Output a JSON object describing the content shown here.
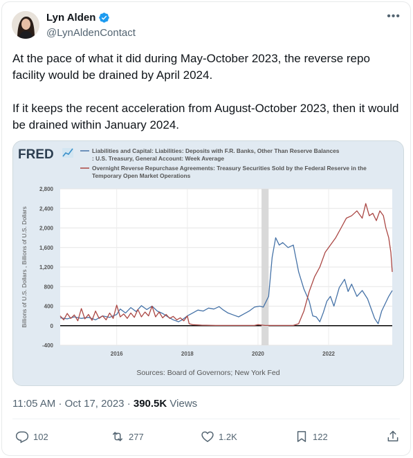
{
  "author": {
    "name": "Lyn Alden",
    "handle": "@LynAldenContact"
  },
  "tweet": {
    "paragraph_1": "At the pace of what it did during May-October 2023, the reverse repo facility would be drained by April 2024.",
    "paragraph_2": "If it keeps the recent acceleration from August-October 2023, then it would be drained within January 2024."
  },
  "meta": {
    "time": "11:05 AM",
    "date": "Oct 17, 2023",
    "separator": "·",
    "views_count": "390.5K",
    "views_label": "Views"
  },
  "actions": {
    "replies": "102",
    "reposts": "277",
    "likes": "1.2K",
    "bookmarks": "122"
  },
  "colors": {
    "accent": "#1d9bf0",
    "series_blue": "#4572a7",
    "series_red": "#aa4643"
  },
  "chart_data": {
    "type": "line",
    "brand": "FRED",
    "source": "Sources: Board of Governors; New York Fed",
    "ylabel": "Billions of U.S. Dollars , Billions of U.S. Dollars",
    "ylim": [
      -400,
      2800
    ],
    "yticks": [
      "2,800",
      "2,400",
      "2,000",
      "1,600",
      "1,200",
      "800",
      "400",
      "0",
      "-400"
    ],
    "xlim": [
      2014.4,
      2023.8
    ],
    "xticks": [
      "2016",
      "2018",
      "2020",
      "2022"
    ],
    "recession": [
      2020.1,
      2020.3
    ],
    "series": [
      {
        "name": "Liabilities and Capital: Liabilities: Deposits with F.R. Banks, Other Than Reserve Balances: U.S. Treasury, General Account: Week Average",
        "color": "#4572a7",
        "points": [
          [
            2014.4,
            160
          ],
          [
            2014.6,
            140
          ],
          [
            2014.8,
            180
          ],
          [
            2015.0,
            150
          ],
          [
            2015.2,
            170
          ],
          [
            2015.4,
            120
          ],
          [
            2015.6,
            200
          ],
          [
            2015.8,
            170
          ],
          [
            2016.0,
            230
          ],
          [
            2016.1,
            340
          ],
          [
            2016.25,
            260
          ],
          [
            2016.4,
            370
          ],
          [
            2016.55,
            290
          ],
          [
            2016.7,
            410
          ],
          [
            2016.85,
            330
          ],
          [
            2017.0,
            400
          ],
          [
            2017.15,
            300
          ],
          [
            2017.3,
            250
          ],
          [
            2017.45,
            180
          ],
          [
            2017.6,
            120
          ],
          [
            2017.75,
            80
          ],
          [
            2017.85,
            120
          ],
          [
            2018.0,
            200
          ],
          [
            2018.15,
            260
          ],
          [
            2018.3,
            320
          ],
          [
            2018.45,
            300
          ],
          [
            2018.6,
            360
          ],
          [
            2018.75,
            340
          ],
          [
            2018.9,
            390
          ],
          [
            2019.0,
            330
          ],
          [
            2019.15,
            260
          ],
          [
            2019.3,
            220
          ],
          [
            2019.45,
            180
          ],
          [
            2019.6,
            240
          ],
          [
            2019.75,
            300
          ],
          [
            2019.9,
            380
          ],
          [
            2020.05,
            400
          ],
          [
            2020.15,
            380
          ],
          [
            2020.3,
            600
          ],
          [
            2020.4,
            1400
          ],
          [
            2020.5,
            1800
          ],
          [
            2020.6,
            1650
          ],
          [
            2020.7,
            1700
          ],
          [
            2020.85,
            1600
          ],
          [
            2021.0,
            1650
          ],
          [
            2021.15,
            1100
          ],
          [
            2021.3,
            750
          ],
          [
            2021.45,
            500
          ],
          [
            2021.55,
            200
          ],
          [
            2021.65,
            180
          ],
          [
            2021.75,
            80
          ],
          [
            2021.85,
            270
          ],
          [
            2021.95,
            500
          ],
          [
            2022.05,
            600
          ],
          [
            2022.15,
            400
          ],
          [
            2022.3,
            780
          ],
          [
            2022.45,
            950
          ],
          [
            2022.55,
            700
          ],
          [
            2022.65,
            850
          ],
          [
            2022.8,
            600
          ],
          [
            2022.95,
            720
          ],
          [
            2023.1,
            550
          ],
          [
            2023.2,
            350
          ],
          [
            2023.3,
            150
          ],
          [
            2023.4,
            40
          ],
          [
            2023.5,
            300
          ],
          [
            2023.6,
            450
          ],
          [
            2023.7,
            600
          ],
          [
            2023.8,
            720
          ]
        ]
      },
      {
        "name": "Overnight Reverse Repurchase Agreements: Treasury Securities Sold by the Federal Reserve in the Temporary Open Market Operations",
        "color": "#aa4643",
        "points": [
          [
            2014.4,
            200
          ],
          [
            2014.5,
            120
          ],
          [
            2014.6,
            250
          ],
          [
            2014.7,
            150
          ],
          [
            2014.8,
            220
          ],
          [
            2014.9,
            100
          ],
          [
            2015.0,
            350
          ],
          [
            2015.1,
            140
          ],
          [
            2015.2,
            230
          ],
          [
            2015.3,
            110
          ],
          [
            2015.4,
            300
          ],
          [
            2015.5,
            150
          ],
          [
            2015.6,
            200
          ],
          [
            2015.7,
            120
          ],
          [
            2015.8,
            260
          ],
          [
            2015.9,
            150
          ],
          [
            2016.0,
            420
          ],
          [
            2016.1,
            180
          ],
          [
            2016.2,
            240
          ],
          [
            2016.3,
            150
          ],
          [
            2016.4,
            260
          ],
          [
            2016.5,
            170
          ],
          [
            2016.6,
            330
          ],
          [
            2016.7,
            180
          ],
          [
            2016.8,
            280
          ],
          [
            2016.9,
            200
          ],
          [
            2017.0,
            400
          ],
          [
            2017.1,
            180
          ],
          [
            2017.2,
            280
          ],
          [
            2017.3,
            160
          ],
          [
            2017.4,
            230
          ],
          [
            2017.5,
            150
          ],
          [
            2017.6,
            190
          ],
          [
            2017.7,
            120
          ],
          [
            2017.8,
            160
          ],
          [
            2017.9,
            100
          ],
          [
            2018.0,
            200
          ],
          [
            2018.05,
            40
          ],
          [
            2018.15,
            20
          ],
          [
            2018.4,
            10
          ],
          [
            2018.8,
            5
          ],
          [
            2019.2,
            5
          ],
          [
            2019.6,
            5
          ],
          [
            2019.9,
            5
          ],
          [
            2020.0,
            20
          ],
          [
            2020.2,
            5
          ],
          [
            2020.6,
            5
          ],
          [
            2021.0,
            5
          ],
          [
            2021.15,
            40
          ],
          [
            2021.3,
            300
          ],
          [
            2021.45,
            700
          ],
          [
            2021.6,
            1000
          ],
          [
            2021.75,
            1200
          ],
          [
            2021.9,
            1500
          ],
          [
            2022.05,
            1650
          ],
          [
            2022.2,
            1800
          ],
          [
            2022.35,
            2000
          ],
          [
            2022.5,
            2200
          ],
          [
            2022.65,
            2250
          ],
          [
            2022.8,
            2350
          ],
          [
            2022.95,
            2200
          ],
          [
            2023.05,
            2500
          ],
          [
            2023.15,
            2250
          ],
          [
            2023.25,
            2300
          ],
          [
            2023.35,
            2150
          ],
          [
            2023.45,
            2350
          ],
          [
            2023.55,
            2250
          ],
          [
            2023.62,
            2000
          ],
          [
            2023.7,
            1800
          ],
          [
            2023.76,
            1500
          ],
          [
            2023.8,
            1100
          ]
        ]
      }
    ]
  }
}
